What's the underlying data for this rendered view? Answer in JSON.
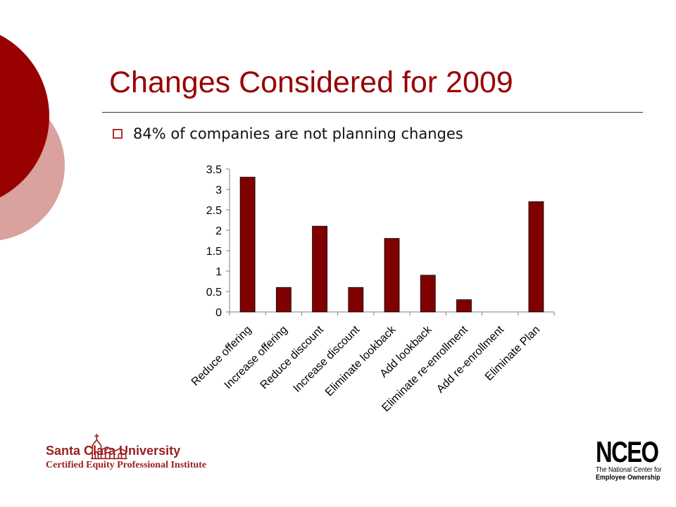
{
  "slide": {
    "title": "Changes Considered for 2009",
    "bullet": "84% of companies are not planning changes"
  },
  "colors": {
    "title": "#990000",
    "bar": "#800000",
    "circle_dark": "#990000",
    "circle_light": "#d9a29e",
    "logo": "#9a1f1f"
  },
  "chart_data": {
    "type": "bar",
    "title": "",
    "xlabel": "",
    "ylabel": "",
    "categories": [
      "Reduce offering",
      "Increase offering",
      "Reduce discount",
      "Increase discount",
      "Eliminate lookback",
      "Add lookback",
      "Eliminate re-enrollment",
      "Add re-enrollment",
      "Eliminate Plan"
    ],
    "series": [
      {
        "values": [
          3.3,
          0.6,
          2.1,
          0.6,
          1.8,
          0.9,
          0.3,
          0,
          2.7
        ]
      }
    ],
    "ylim": [
      0,
      3.5
    ],
    "yticks": [
      "0",
      "0.5",
      "1",
      "1.5",
      "2",
      "2.5",
      "3",
      "3.5"
    ],
    "grid": false,
    "legend": "none"
  },
  "logos": {
    "scu_name": "Santa Clara University",
    "scu_sub": "Certified Equity Professional Institute",
    "nceo_mark": "NCEO",
    "nceo_line1": "The National Center for",
    "nceo_line2": "Employee Ownership"
  }
}
